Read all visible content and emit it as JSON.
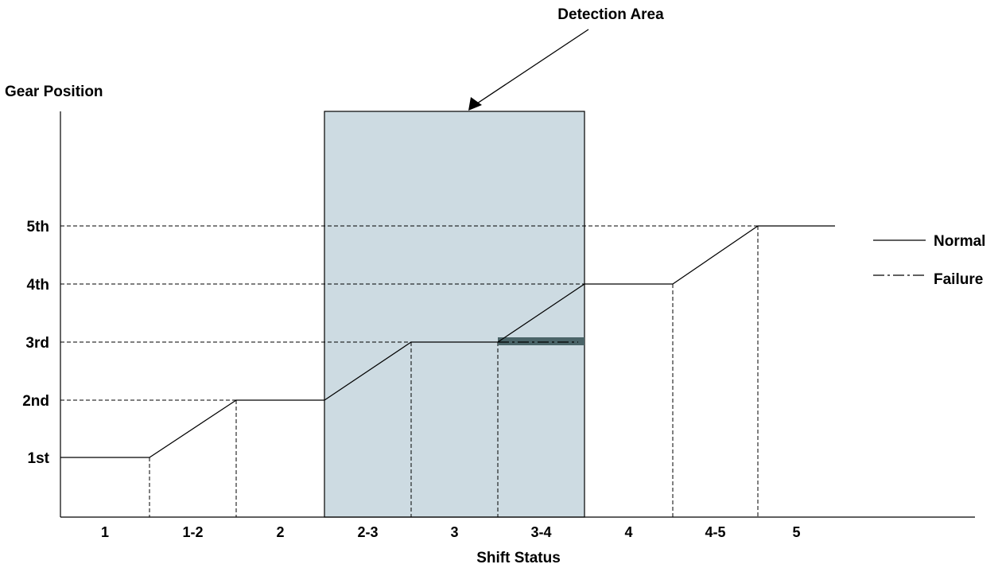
{
  "title": "Detection Area",
  "y_axis_label": "Gear Position",
  "x_axis_label": "Shift Status",
  "gear_levels": [
    "1st",
    "2nd",
    "3rd",
    "4th",
    "5th"
  ],
  "shift_states": [
    "1",
    "1-2",
    "2",
    "2-3",
    "3",
    "3-4",
    "4",
    "4-5",
    "5"
  ],
  "legend": {
    "normal": "Normal",
    "failure": "Failure"
  },
  "colors": {
    "detection_area": "#cddbe2",
    "failure_band": "#4a6468"
  },
  "chart_data": {
    "type": "line",
    "categories": [
      "1",
      "1-2",
      "2",
      "2-3",
      "3",
      "3-4",
      "4",
      "4-5",
      "5"
    ],
    "series": [
      {
        "name": "Normal",
        "gear_at_boundaries": [
          1,
          1,
          2,
          2,
          3,
          3,
          4,
          4,
          5,
          5
        ]
      },
      {
        "name": "Failure",
        "segment_state": "3-4",
        "gear": 3
      }
    ],
    "highlight": {
      "label": "Detection Area",
      "from_state": "2-3",
      "to_state": "3-4"
    }
  }
}
